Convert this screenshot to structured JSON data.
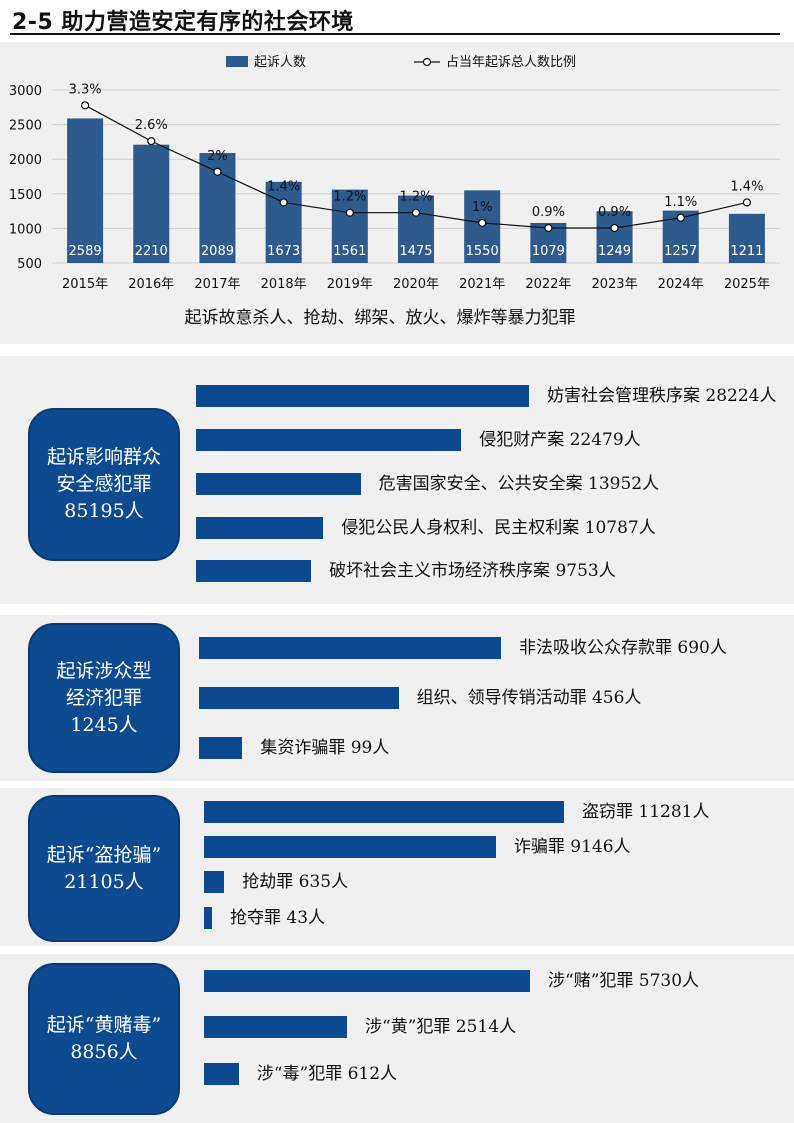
{
  "title": "2-5 助力营造安定有序的社会环境",
  "chart_data": {
    "type": "bar",
    "title": "",
    "xlabel": "起诉故意杀人、抢劫、绑架、放火、爆炸等暴力犯罪",
    "ylabel": "",
    "categories": [
      "2015年",
      "2016年",
      "2017年",
      "2018年",
      "2019年",
      "2020年",
      "2021年",
      "2022年",
      "2023年",
      "2024年",
      "2025年"
    ],
    "yticks": [
      "500",
      "1000",
      "1500",
      "2000",
      "2500",
      "3000"
    ],
    "ylim": [
      500,
      3000
    ],
    "legend_position": "top",
    "series": [
      {
        "name": "起诉人数",
        "type": "bar",
        "color": "#2e5b8e",
        "values": [
          2589,
          2210,
          2089,
          1673,
          1561,
          1475,
          1550,
          1079,
          1249,
          1257,
          1211
        ],
        "labels": [
          "2589",
          "2210",
          "2089",
          "1673",
          "1561",
          "1475",
          "1550",
          "1079",
          "1249",
          "1257",
          "1211"
        ]
      },
      {
        "name": "占当年起诉总人数比例",
        "type": "line",
        "color": "#111111",
        "values": [
          3.3,
          2.6,
          2.0,
          1.4,
          1.2,
          1.2,
          1.0,
          0.9,
          0.9,
          1.1,
          1.4
        ],
        "labels": [
          "3.3%",
          "2.6%",
          "2%",
          "1.4%",
          "1.2%",
          "1.2%",
          "1%",
          "0.9%",
          "0.9%",
          "1.1%",
          "1.4%"
        ]
      }
    ]
  },
  "sections": [
    {
      "badge": [
        "起诉影响群众",
        "安全感犯罪",
        "85195人"
      ],
      "bar_color": "#0d4a8f",
      "items": [
        {
          "label": "妨害社会管理秩序案 28224人",
          "value": 28224
        },
        {
          "label": "侵犯财产案 22479人",
          "value": 22479
        },
        {
          "label": "危害国家安全、公共安全案 13952人",
          "value": 13952
        },
        {
          "label": "侵犯公民人身权利、民主权利案 10787人",
          "value": 10787
        },
        {
          "label": "破坏社会主义市场经济秩序案 9753人",
          "value": 9753
        }
      ]
    },
    {
      "badge": [
        "起诉涉众型",
        "经济犯罪",
        "1245人"
      ],
      "bar_color": "#0d4a8f",
      "items": [
        {
          "label": "非法吸收公众存款罪 690人",
          "value": 690
        },
        {
          "label": "组织、领导传销活动罪 456人",
          "value": 456
        },
        {
          "label": "集资诈骗罪 99人",
          "value": 99
        }
      ]
    },
    {
      "badge": [
        "起诉“盗抢骗”",
        "21105人"
      ],
      "bar_color": "#0d4a8f",
      "items": [
        {
          "label": "盗窃罪 11281人",
          "value": 11281
        },
        {
          "label": "诈骗罪 9146人",
          "value": 9146
        },
        {
          "label": "抢劫罪 635人",
          "value": 635
        },
        {
          "label": "抢夺罪 43人",
          "value": 43
        }
      ]
    },
    {
      "badge": [
        "起诉“黄赌毒”",
        "8856人"
      ],
      "bar_color": "#0d4a8f",
      "items": [
        {
          "label": "涉“赌”犯罪 5730人",
          "value": 5730
        },
        {
          "label": "涉“黄”犯罪 2514人",
          "value": 2514
        },
        {
          "label": "涉“毒”犯罪 612人",
          "value": 612
        }
      ]
    }
  ]
}
